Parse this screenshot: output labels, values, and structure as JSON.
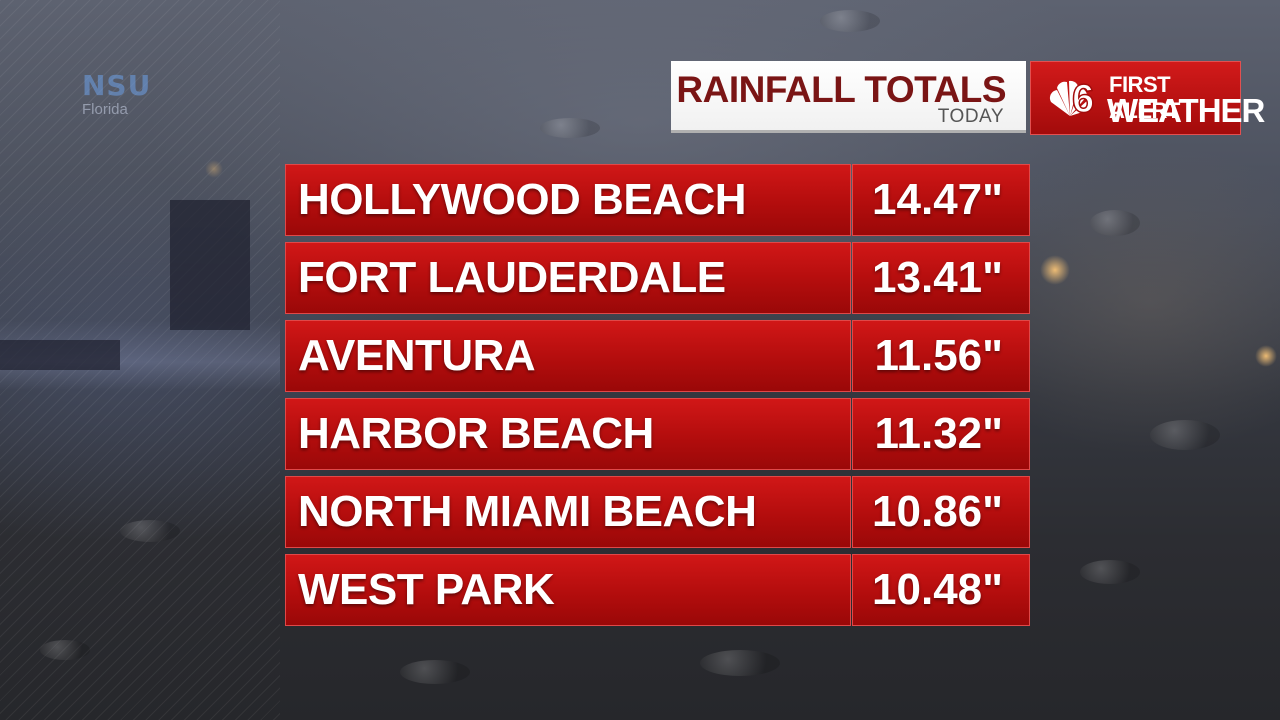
{
  "watermark": {
    "logo": "NSU",
    "sub": "Florida"
  },
  "header": {
    "title": "RAINFALL TOTALS",
    "subtitle": "TODAY"
  },
  "brand": {
    "channel": "6",
    "line1": "FIRST ALERT",
    "line2": "WEATHER",
    "icon": "peacock-logo-icon"
  },
  "rainfall": [
    {
      "location": "HOLLYWOOD BEACH",
      "amount": "14.47\""
    },
    {
      "location": "FORT LAUDERDALE",
      "amount": "13.41\""
    },
    {
      "location": "AVENTURA",
      "amount": "11.56\""
    },
    {
      "location": "HARBOR BEACH",
      "amount": "11.32\""
    },
    {
      "location": "NORTH MIAMI BEACH",
      "amount": "10.86\""
    },
    {
      "location": "WEST PARK",
      "amount": "10.48\""
    }
  ],
  "colors": {
    "accent_red": "#c01212",
    "title_red": "#7a1515"
  }
}
